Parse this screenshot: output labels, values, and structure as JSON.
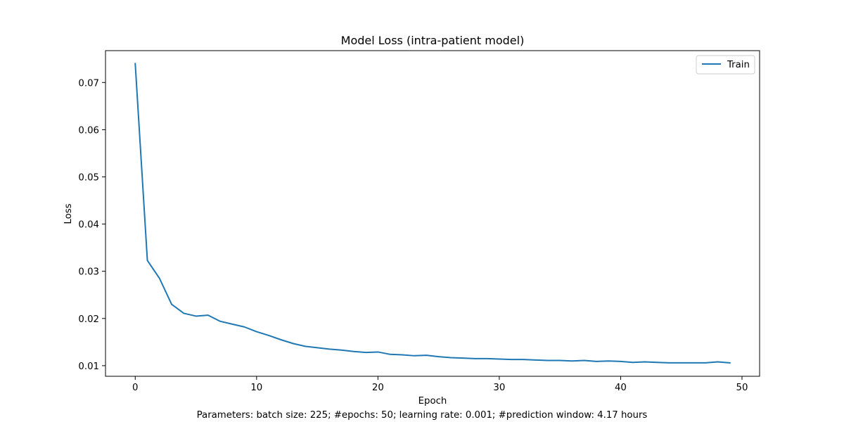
{
  "chart_data": {
    "type": "line",
    "title": "Model Loss (intra-patient model)",
    "xlabel": "Epoch",
    "ylabel": "Loss",
    "caption": "Parameters: batch size: 225; #epochs: 50; learning rate: 0.001; #prediction window: 4.17 hours",
    "xlim": [
      -2.45,
      51.45
    ],
    "ylim": [
      0.00775,
      0.07675
    ],
    "xticks": [
      0,
      10,
      20,
      30,
      40,
      50
    ],
    "yticks": [
      0.01,
      0.02,
      0.03,
      0.04,
      0.05,
      0.06,
      0.07
    ],
    "ytick_labels": [
      "0.01",
      "0.02",
      "0.03",
      "0.04",
      "0.05",
      "0.06",
      "0.07"
    ],
    "grid": false,
    "legend_position": "top-right",
    "series": [
      {
        "name": "Train",
        "color": "#1f77b4",
        "x": [
          0,
          1,
          2,
          3,
          4,
          5,
          6,
          7,
          8,
          9,
          10,
          11,
          12,
          13,
          14,
          15,
          16,
          17,
          18,
          19,
          20,
          21,
          22,
          23,
          24,
          25,
          26,
          27,
          28,
          29,
          30,
          31,
          32,
          33,
          34,
          35,
          36,
          37,
          38,
          39,
          40,
          41,
          42,
          43,
          44,
          45,
          46,
          47,
          48,
          49
        ],
        "values": [
          0.074,
          0.0323,
          0.0285,
          0.023,
          0.0211,
          0.0205,
          0.0207,
          0.0194,
          0.0188,
          0.0182,
          0.0172,
          0.0164,
          0.0155,
          0.0147,
          0.0141,
          0.0138,
          0.0135,
          0.0133,
          0.013,
          0.0128,
          0.0129,
          0.0124,
          0.0123,
          0.0121,
          0.0122,
          0.0119,
          0.0117,
          0.0116,
          0.0115,
          0.0115,
          0.0114,
          0.0113,
          0.0113,
          0.0112,
          0.0111,
          0.0111,
          0.011,
          0.0111,
          0.0109,
          0.011,
          0.0109,
          0.0107,
          0.0108,
          0.0107,
          0.0106,
          0.0106,
          0.0106,
          0.0106,
          0.0108,
          0.0106
        ]
      }
    ]
  }
}
